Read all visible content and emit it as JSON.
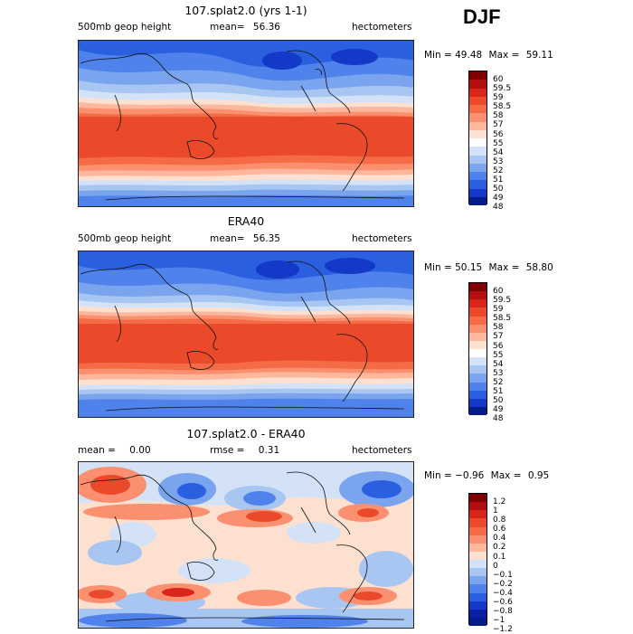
{
  "season": "DJF",
  "panels": [
    {
      "title": "107.splat2.0 (yrs 1-1)",
      "field": "500mb geop height",
      "stat_left": "",
      "stat_mid": "mean=",
      "stat_mid_value": "56.36",
      "units": "hectometers",
      "min_label": "Min =",
      "min_value": "49.48",
      "max_label": "Max =",
      "max_value": "59.11"
    },
    {
      "title": "ERA40",
      "field": "500mb geop height",
      "stat_left": "",
      "stat_mid": "mean=",
      "stat_mid_value": "56.35",
      "units": "hectometers",
      "min_label": "Min =",
      "min_value": "50.15",
      "max_label": "Max =",
      "max_value": "58.80"
    },
    {
      "title": "107.splat2.0 - ERA40",
      "field": "",
      "stat_left": "mean =",
      "stat_left_value": "0.00",
      "stat_mid": "rmse =",
      "stat_mid_value": "0.31",
      "units": "hectometers",
      "min_label": "Min =",
      "min_value": "−0.96",
      "max_label": "Max =",
      "max_value": "0.95"
    }
  ],
  "colorbars": {
    "abs_labels": [
      "60",
      "59.5",
      "59",
      "58.5",
      "58",
      "57",
      "56",
      "55",
      "54",
      "53",
      "52",
      "51",
      "50",
      "49",
      "48"
    ],
    "abs_colors": [
      "#7f0000",
      "#b30f0f",
      "#d8261a",
      "#eb4a2a",
      "#f56b45",
      "#fa9070",
      "#fdb79c",
      "#fde0d0",
      "#ffffff",
      "#d3e2f7",
      "#a8c6f2",
      "#7aa4ee",
      "#4f82ea",
      "#2a5fe0",
      "#1438c8",
      "#041b8a"
    ],
    "diff_labels": [
      "1.2",
      "1",
      "0.8",
      "0.6",
      "0.4",
      "0.2",
      "0.1",
      "0",
      "−0.1",
      "−0.2",
      "−0.4",
      "−0.6",
      "−0.8",
      "−1",
      "−1.2"
    ],
    "diff_colors": [
      "#7f0000",
      "#b30f0f",
      "#d8261a",
      "#eb4a2a",
      "#f56b45",
      "#fa9070",
      "#fdb79c",
      "#fde0d0",
      "#d3e2f7",
      "#a8c6f2",
      "#7aa4ee",
      "#4f82ea",
      "#2a5fe0",
      "#1438c8",
      "#0a20a0",
      "#041b8a"
    ]
  }
}
